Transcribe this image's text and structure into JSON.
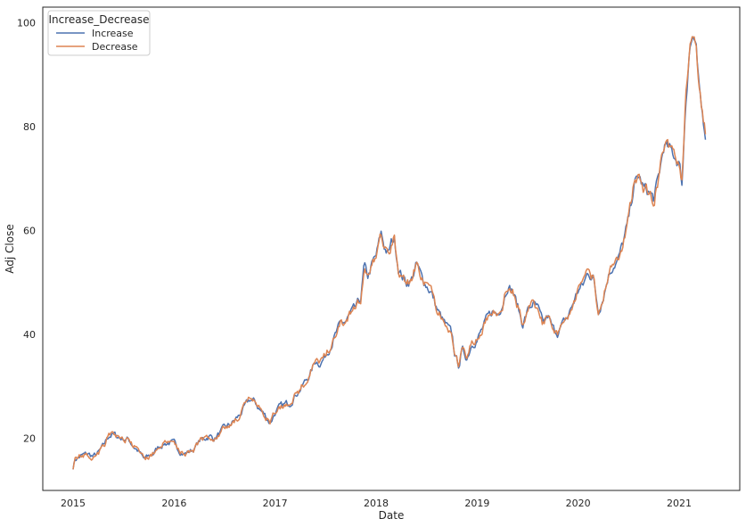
{
  "chart_data": {
    "type": "line",
    "title": "",
    "xlabel": "Date",
    "ylabel": "Adj Close",
    "xlim": [
      2014.7,
      2021.6
    ],
    "ylim": [
      10.0,
      103.0
    ],
    "x_ticks": [
      2015,
      2016,
      2017,
      2018,
      2019,
      2020,
      2021
    ],
    "x_tick_labels": [
      "2015",
      "2016",
      "2017",
      "2018",
      "2019",
      "2020",
      "2021"
    ],
    "y_ticks": [
      20,
      40,
      60,
      80,
      100
    ],
    "y_tick_labels": [
      "20",
      "40",
      "60",
      "80",
      "100"
    ],
    "grid": false,
    "legend": {
      "title": "Increase_Decrease",
      "position": "top-left",
      "entries": [
        {
          "name": "Increase",
          "color": "#4c72b0"
        },
        {
          "name": "Decrease",
          "color": "#dd8452"
        }
      ]
    },
    "anchors": [
      [
        2015.0,
        14.5
      ],
      [
        2015.02,
        16.0
      ],
      [
        2015.05,
        16.3
      ],
      [
        2015.1,
        16.8
      ],
      [
        2015.15,
        17.0
      ],
      [
        2015.2,
        16.5
      ],
      [
        2015.25,
        17.2
      ],
      [
        2015.3,
        18.5
      ],
      [
        2015.35,
        20.5
      ],
      [
        2015.4,
        20.8
      ],
      [
        2015.45,
        20.2
      ],
      [
        2015.5,
        20.0
      ],
      [
        2015.55,
        19.8
      ],
      [
        2015.6,
        18.5
      ],
      [
        2015.65,
        17.5
      ],
      [
        2015.7,
        16.0
      ],
      [
        2015.75,
        16.5
      ],
      [
        2015.8,
        17.2
      ],
      [
        2015.85,
        18.5
      ],
      [
        2015.9,
        19.0
      ],
      [
        2015.95,
        19.2
      ],
      [
        2016.0,
        19.0
      ],
      [
        2016.05,
        17.8
      ],
      [
        2016.1,
        17.0
      ],
      [
        2016.15,
        17.5
      ],
      [
        2016.2,
        18.0
      ],
      [
        2016.25,
        19.5
      ],
      [
        2016.3,
        20.0
      ],
      [
        2016.35,
        20.5
      ],
      [
        2016.4,
        20.0
      ],
      [
        2016.45,
        21.0
      ],
      [
        2016.5,
        22.0
      ],
      [
        2016.55,
        22.5
      ],
      [
        2016.6,
        23.5
      ],
      [
        2016.65,
        24.5
      ],
      [
        2016.7,
        26.0
      ],
      [
        2016.75,
        27.5
      ],
      [
        2016.8,
        27.0
      ],
      [
        2016.85,
        25.5
      ],
      [
        2016.9,
        24.5
      ],
      [
        2016.95,
        23.0
      ],
      [
        2017.0,
        25.0
      ],
      [
        2017.05,
        26.0
      ],
      [
        2017.1,
        26.5
      ],
      [
        2017.15,
        27.0
      ],
      [
        2017.2,
        28.5
      ],
      [
        2017.25,
        29.5
      ],
      [
        2017.3,
        31.0
      ],
      [
        2017.35,
        32.5
      ],
      [
        2017.4,
        35.0
      ],
      [
        2017.45,
        34.5
      ],
      [
        2017.5,
        36.0
      ],
      [
        2017.55,
        38.0
      ],
      [
        2017.6,
        40.0
      ],
      [
        2017.65,
        42.0
      ],
      [
        2017.7,
        42.5
      ],
      [
        2017.75,
        44.0
      ],
      [
        2017.8,
        45.0
      ],
      [
        2017.85,
        47.0
      ],
      [
        2017.88,
        53.0
      ],
      [
        2017.92,
        51.0
      ],
      [
        2017.96,
        53.5
      ],
      [
        2018.0,
        55.0
      ],
      [
        2018.05,
        59.5
      ],
      [
        2018.08,
        57.0
      ],
      [
        2018.12,
        55.5
      ],
      [
        2018.15,
        57.5
      ],
      [
        2018.18,
        58.5
      ],
      [
        2018.22,
        53.0
      ],
      [
        2018.25,
        51.5
      ],
      [
        2018.3,
        50.0
      ],
      [
        2018.35,
        50.5
      ],
      [
        2018.4,
        53.5
      ],
      [
        2018.45,
        51.0
      ],
      [
        2018.5,
        49.5
      ],
      [
        2018.55,
        48.0
      ],
      [
        2018.6,
        45.0
      ],
      [
        2018.65,
        43.0
      ],
      [
        2018.7,
        41.5
      ],
      [
        2018.75,
        40.0
      ],
      [
        2018.78,
        36.0
      ],
      [
        2018.82,
        34.0
      ],
      [
        2018.85,
        37.0
      ],
      [
        2018.9,
        35.5
      ],
      [
        2018.95,
        38.5
      ],
      [
        2019.0,
        39.0
      ],
      [
        2019.05,
        41.0
      ],
      [
        2019.1,
        43.0
      ],
      [
        2019.15,
        44.5
      ],
      [
        2019.2,
        44.0
      ],
      [
        2019.25,
        46.0
      ],
      [
        2019.3,
        49.5
      ],
      [
        2019.35,
        48.5
      ],
      [
        2019.4,
        45.5
      ],
      [
        2019.45,
        42.0
      ],
      [
        2019.5,
        44.5
      ],
      [
        2019.55,
        46.0
      ],
      [
        2019.6,
        45.0
      ],
      [
        2019.65,
        42.0
      ],
      [
        2019.7,
        43.5
      ],
      [
        2019.75,
        41.0
      ],
      [
        2019.8,
        40.5
      ],
      [
        2019.85,
        42.0
      ],
      [
        2019.9,
        43.5
      ],
      [
        2019.95,
        46.0
      ],
      [
        2020.0,
        48.5
      ],
      [
        2020.05,
        49.5
      ],
      [
        2020.1,
        52.0
      ],
      [
        2020.15,
        51.0
      ],
      [
        2020.2,
        44.5
      ],
      [
        2020.25,
        47.5
      ],
      [
        2020.3,
        51.5
      ],
      [
        2020.35,
        53.5
      ],
      [
        2020.4,
        54.5
      ],
      [
        2020.45,
        58.0
      ],
      [
        2020.5,
        62.0
      ],
      [
        2020.55,
        68.5
      ],
      [
        2020.6,
        70.5
      ],
      [
        2020.65,
        68.0
      ],
      [
        2020.7,
        67.5
      ],
      [
        2020.75,
        66.0
      ],
      [
        2020.8,
        70.5
      ],
      [
        2020.85,
        76.5
      ],
      [
        2020.9,
        75.5
      ],
      [
        2020.95,
        74.5
      ],
      [
        2021.0,
        73.0
      ],
      [
        2021.03,
        69.0
      ],
      [
        2021.06,
        83.0
      ],
      [
        2021.1,
        95.0
      ],
      [
        2021.14,
        97.5
      ],
      [
        2021.17,
        94.0
      ],
      [
        2021.2,
        86.0
      ],
      [
        2021.23,
        82.0
      ],
      [
        2021.26,
        79.0
      ]
    ],
    "series": [
      {
        "name": "Increase",
        "color": "#4c72b0",
        "seed": 7,
        "noise": 0.6
      },
      {
        "name": "Decrease",
        "color": "#dd8452",
        "seed": 21,
        "noise": 0.6
      }
    ]
  }
}
